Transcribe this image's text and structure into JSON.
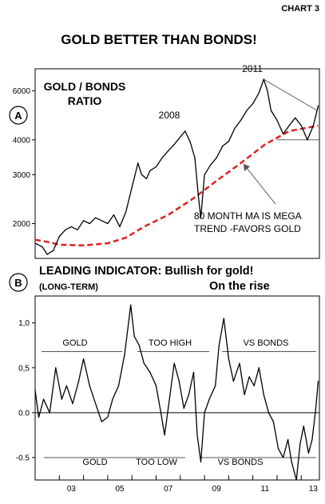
{
  "header": {
    "chart_number": "CHART 3",
    "title": "GOLD BETTER THAN BONDS!"
  },
  "colors": {
    "ratio_line": "#000000",
    "moving_average": "#e02020",
    "background": "#ffffff"
  },
  "panel_a": {
    "badge": "A",
    "title_line1": "GOLD / BONDS",
    "title_line2": "RATIO",
    "annotation_2008": "2008",
    "annotation_2011": "2011",
    "ma_note_line1": "80 MONTH MA IS MEGA",
    "ma_note_line2": "TREND -FAVORS GOLD"
  },
  "panel_b": {
    "badge": "B",
    "title_main": "LEADING INDICATOR: Bullish for gold!",
    "subtitle_left": "(LONG-TERM)",
    "subtitle_right": "On the rise",
    "upper_labels": [
      "GOLD",
      "TOO  HIGH",
      "VS BONDS"
    ],
    "lower_labels": [
      "GOLD",
      "TOO LOW",
      "VS BONDS"
    ]
  },
  "chart_data": [
    {
      "type": "line",
      "panel": "A",
      "title": "GOLD / BONDS RATIO",
      "scale": "log",
      "ylim": [
        1500,
        7200
      ],
      "yticks": [
        2000,
        3000,
        4000,
        6000
      ],
      "xlim": [
        2002.0,
        2013.75
      ],
      "series": [
        {
          "role": "ratio",
          "x": [
            2002.0,
            2002.3,
            2002.5,
            2002.75,
            2003.0,
            2003.25,
            2003.5,
            2003.75,
            2004.0,
            2004.25,
            2004.5,
            2004.75,
            2005.0,
            2005.25,
            2005.5,
            2005.75,
            2006.0,
            2006.25,
            2006.4,
            2006.6,
            2006.75,
            2007.0,
            2007.25,
            2007.5,
            2007.75,
            2008.0,
            2008.2,
            2008.4,
            2008.6,
            2008.75,
            2008.85,
            2009.0,
            2009.25,
            2009.5,
            2009.75,
            2010.0,
            2010.25,
            2010.5,
            2010.75,
            2011.0,
            2011.25,
            2011.45,
            2011.6,
            2011.75,
            2012.0,
            2012.25,
            2012.5,
            2012.75,
            2013.0,
            2013.25,
            2013.5,
            2013.7
          ],
          "y": [
            1700,
            1650,
            1550,
            1600,
            1800,
            1900,
            1950,
            1900,
            2050,
            2000,
            2100,
            2050,
            2000,
            2150,
            1950,
            2200,
            2700,
            3300,
            3000,
            2900,
            3100,
            3200,
            3450,
            3650,
            3850,
            4100,
            4300,
            3950,
            3450,
            2500,
            2100,
            3000,
            3250,
            3450,
            3800,
            3950,
            4400,
            4700,
            5100,
            5400,
            5900,
            6600,
            6000,
            5100,
            4700,
            4200,
            4500,
            4800,
            4500,
            4000,
            4500,
            5300
          ]
        },
        {
          "role": "80-month moving average",
          "x": [
            2002.0,
            2002.5,
            2003.0,
            2004.0,
            2005.0,
            2005.75,
            2006.5,
            2007.5,
            2008.5,
            2009.5,
            2010.5,
            2011.5,
            2012.5,
            2013.7
          ],
          "y": [
            1750,
            1720,
            1680,
            1670,
            1700,
            1780,
            1950,
            2150,
            2450,
            2850,
            3300,
            3850,
            4300,
            4500
          ]
        }
      ]
    },
    {
      "type": "line",
      "panel": "B",
      "title": "LEADING INDICATOR: Bullish for gold!",
      "ylim": [
        -0.75,
        1.3
      ],
      "yticks": [
        -0.5,
        0.0,
        0.5,
        1.0
      ],
      "ytick_labels": [
        "-0.5",
        "0.0",
        "0,5",
        "1,0"
      ],
      "xlim": [
        2002.0,
        2013.75
      ],
      "xticks": [
        2003,
        2005,
        2007,
        2009,
        2011,
        2013
      ],
      "xtick_labels": [
        "03",
        "05",
        "07",
        "09",
        "11",
        "13"
      ],
      "reference_lines": [
        0.0,
        0.68,
        -0.5
      ],
      "series": [
        {
          "role": "indicator",
          "x": [
            2002.0,
            2002.15,
            2002.35,
            2002.6,
            2002.85,
            2003.1,
            2003.3,
            2003.55,
            2003.8,
            2004.0,
            2004.25,
            2004.5,
            2004.75,
            2005.0,
            2005.2,
            2005.45,
            2005.7,
            2005.95,
            2006.1,
            2006.3,
            2006.5,
            2006.75,
            2007.0,
            2007.2,
            2007.35,
            2007.55,
            2007.75,
            2007.95,
            2008.15,
            2008.35,
            2008.55,
            2008.7,
            2008.85,
            2009.0,
            2009.2,
            2009.45,
            2009.6,
            2009.8,
            2010.0,
            2010.2,
            2010.45,
            2010.65,
            2010.85,
            2011.05,
            2011.25,
            2011.45,
            2011.65,
            2011.85,
            2012.05,
            2012.25,
            2012.45,
            2012.6,
            2012.8,
            2012.95,
            2013.1,
            2013.3,
            2013.45,
            2013.6,
            2013.7
          ],
          "y": [
            0.25,
            -0.05,
            0.15,
            0.0,
            0.5,
            0.15,
            0.3,
            0.1,
            0.35,
            0.6,
            0.3,
            0.1,
            -0.1,
            -0.05,
            0.15,
            0.3,
            0.65,
            1.2,
            0.85,
            0.75,
            0.55,
            0.45,
            0.3,
            0.0,
            -0.25,
            0.15,
            0.55,
            0.35,
            0.05,
            0.2,
            0.45,
            -0.25,
            -0.55,
            0.0,
            0.15,
            0.3,
            0.75,
            1.05,
            0.6,
            0.35,
            0.55,
            0.2,
            0.4,
            0.3,
            0.5,
            0.2,
            0.0,
            -0.1,
            -0.4,
            -0.5,
            -0.3,
            -0.55,
            -0.75,
            -0.35,
            -0.15,
            -0.45,
            -0.3,
            0.05,
            0.35
          ]
        }
      ]
    }
  ]
}
